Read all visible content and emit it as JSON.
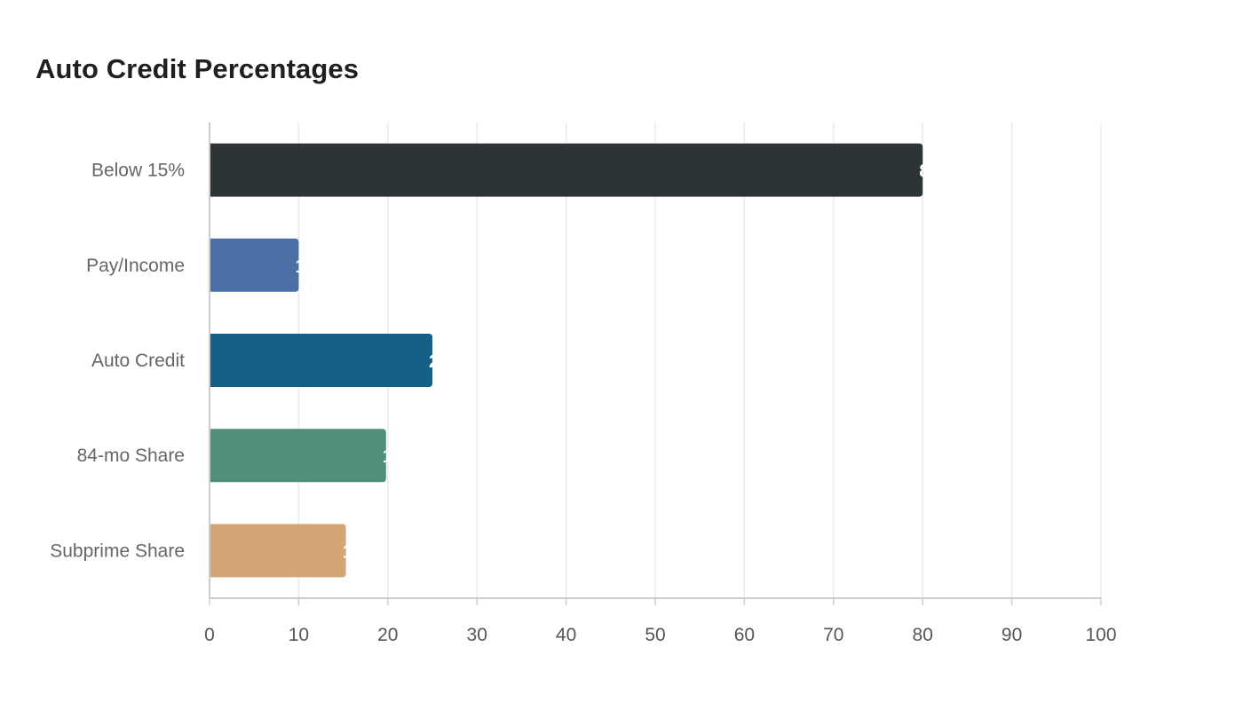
{
  "chart_data": {
    "type": "bar",
    "orientation": "horizontal",
    "title": "Auto Credit Percentages",
    "xlabel": "",
    "ylabel": "",
    "categories": [
      "Below 15%",
      "Pay/Income",
      "Auto Credit",
      "84-mo Share",
      "Subprime Share"
    ],
    "values": [
      80,
      10,
      25,
      19.8,
      15.3
    ],
    "colors": [
      "#2d3436",
      "#4a6fa5",
      "#166088",
      "#4f8f7c",
      "#d4a574"
    ],
    "xlim": [
      0,
      100
    ],
    "xticks": [
      "0",
      "10",
      "20",
      "30",
      "40",
      "50",
      "60",
      "70",
      "80",
      "90",
      "100"
    ],
    "grid": true,
    "legend": "none"
  }
}
